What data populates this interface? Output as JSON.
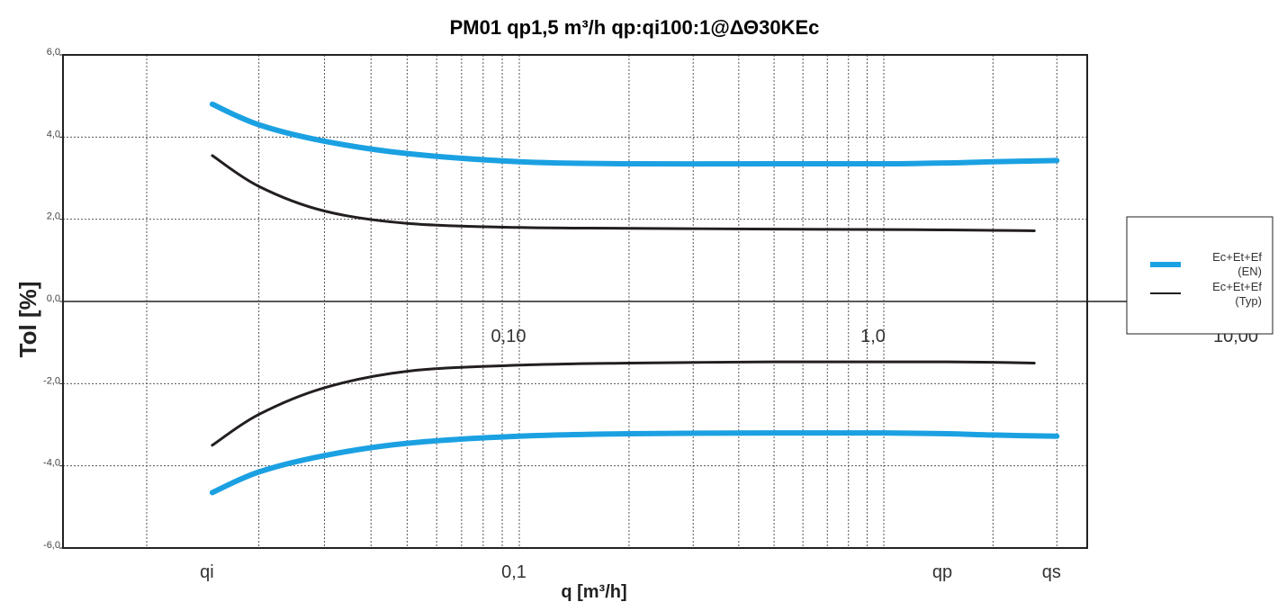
{
  "chart_data": {
    "type": "line",
    "title": "PM01 qp1,5 m³/h qp:qi100:1@ΔΘ30KEc",
    "xlabel": "q [m³/h]",
    "ylabel": "Tol [%]",
    "xscale": "log",
    "xlim": [
      0.01,
      5.5
    ],
    "ylim": [
      -6.0,
      6.0
    ],
    "grid": true,
    "y_ticks": [
      "-6,0",
      "-4,0",
      "-2,0",
      "0,0",
      "2,0",
      "4,0",
      "6,0"
    ],
    "x_named_ticks": [
      {
        "label": "qi",
        "x": 0.015
      },
      {
        "label": "0,1",
        "x": 0.1
      },
      {
        "label": "qp",
        "x": 1.5
      },
      {
        "label": "qs",
        "x": 3.0
      }
    ],
    "zero_line_labels": [
      {
        "label": "0,10",
        "x": 0.1
      },
      {
        "label": "1,0",
        "x": 1.0
      },
      {
        "label": "10,00",
        "x": 10.0
      }
    ],
    "legend_position": "right",
    "series": [
      {
        "name": "Ec+Et+Ef (EN)",
        "color": "#1BA1E2",
        "x": [
          0.015,
          0.02,
          0.03,
          0.05,
          0.1,
          0.2,
          0.5,
          1.0,
          1.5,
          2.0,
          3.0
        ],
        "upper": [
          4.8,
          4.3,
          3.9,
          3.6,
          3.4,
          3.35,
          3.35,
          3.35,
          3.37,
          3.4,
          3.43
        ],
        "lower": [
          -4.65,
          -4.15,
          -3.75,
          -3.45,
          -3.28,
          -3.22,
          -3.2,
          -3.2,
          -3.22,
          -3.25,
          -3.28
        ]
      },
      {
        "name": "Ec+Et+Ef (Typ)",
        "color": "#231F20",
        "x": [
          0.015,
          0.02,
          0.03,
          0.05,
          0.1,
          0.2,
          0.5,
          1.0,
          1.5,
          2.0,
          2.6
        ],
        "upper": [
          3.55,
          2.8,
          2.2,
          1.9,
          1.8,
          1.78,
          1.76,
          1.75,
          1.74,
          1.73,
          1.72
        ],
        "lower": [
          -3.5,
          -2.75,
          -2.1,
          -1.7,
          -1.55,
          -1.5,
          -1.47,
          -1.47,
          -1.47,
          -1.48,
          -1.5
        ]
      }
    ]
  }
}
